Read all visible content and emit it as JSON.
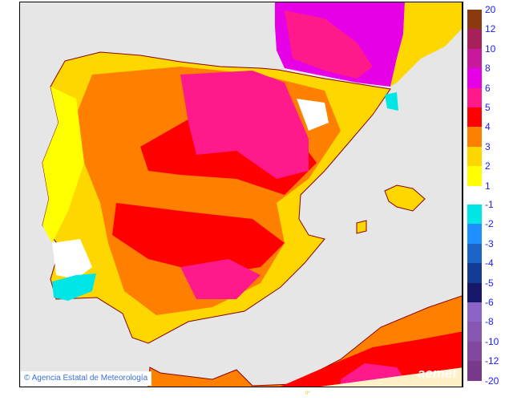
{
  "map": {
    "credit": "© Agencia Estatal de Meteorología",
    "logo": "aemet",
    "longitude_label": "0º"
  },
  "legend": {
    "positive": [
      {
        "label": "20",
        "color": "#8b3a10"
      },
      {
        "label": "12",
        "color": "#a8205a"
      },
      {
        "label": "10",
        "color": "#c8189c"
      },
      {
        "label": "8",
        "color": "#e600e6"
      },
      {
        "label": "6",
        "color": "#ff1a8c"
      },
      {
        "label": "5",
        "color": "#ff0000"
      },
      {
        "label": "4",
        "color": "#ff8000"
      },
      {
        "label": "3",
        "color": "#ffd700"
      },
      {
        "label": "2",
        "color": "#ffff00"
      },
      {
        "label": "1",
        "color": null
      }
    ],
    "negative": [
      {
        "label": "-1",
        "color": "#00e6e6"
      },
      {
        "label": "-2",
        "color": "#1e90ff"
      },
      {
        "label": "-3",
        "color": "#1c64c8"
      },
      {
        "label": "-4",
        "color": "#143c96"
      },
      {
        "label": "-5",
        "color": "#18186a"
      },
      {
        "label": "-6",
        "color": "#8c64c8"
      },
      {
        "label": "-8",
        "color": "#8656b0"
      },
      {
        "label": "-10",
        "color": "#80489e"
      },
      {
        "label": "-12",
        "color": "#7a3a8c"
      },
      {
        "label": "-20",
        "color": null
      }
    ]
  }
}
